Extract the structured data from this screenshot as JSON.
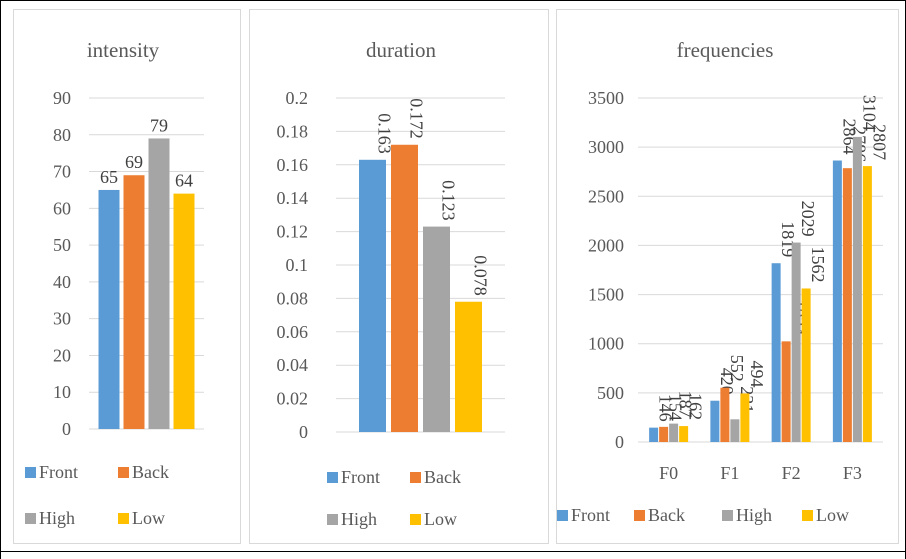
{
  "colors": {
    "Front": "#5b9bd5",
    "Back": "#ed7d31",
    "High": "#a5a5a5",
    "Low": "#ffc000"
  },
  "chart_data": [
    {
      "type": "bar",
      "title": "intensity",
      "categories": [
        ""
      ],
      "series": [
        {
          "name": "Front",
          "values": [
            65
          ]
        },
        {
          "name": "Back",
          "values": [
            69
          ]
        },
        {
          "name": "High",
          "values": [
            79
          ]
        },
        {
          "name": "Low",
          "values": [
            64
          ]
        }
      ],
      "yticks": [
        "0",
        "10",
        "20",
        "30",
        "40",
        "50",
        "60",
        "70",
        "80",
        "90"
      ],
      "ylim": [
        0,
        90
      ],
      "data_labels": [
        "65",
        "69",
        "79",
        "64"
      ],
      "data_label_rotation": "horizontal",
      "grid": true,
      "legend": "bottom"
    },
    {
      "type": "bar",
      "title": "duration",
      "categories": [
        ""
      ],
      "series": [
        {
          "name": "Front",
          "values": [
            0.163
          ]
        },
        {
          "name": "Back",
          "values": [
            0.172
          ]
        },
        {
          "name": "High",
          "values": [
            0.123
          ]
        },
        {
          "name": "Low",
          "values": [
            0.078
          ]
        }
      ],
      "yticks": [
        "0",
        "0.02",
        "0.04",
        "0.06",
        "0.08",
        "0.1",
        "0.12",
        "0.14",
        "0.16",
        "0.18",
        "0.2"
      ],
      "ylim": [
        0,
        0.2
      ],
      "data_labels": [
        "0.163",
        "0.172",
        "0.123",
        "0.078"
      ],
      "data_label_rotation": "vertical",
      "grid": true,
      "legend": "bottom"
    },
    {
      "type": "bar",
      "title": "frequencies",
      "categories": [
        "F0",
        "F1",
        "F2",
        "F3"
      ],
      "series": [
        {
          "name": "Front",
          "values": [
            146,
            420,
            1819,
            2864
          ]
        },
        {
          "name": "Back",
          "values": [
            154,
            552,
            1024,
            2786
          ]
        },
        {
          "name": "High",
          "values": [
            187,
            231,
            2029,
            3104
          ]
        },
        {
          "name": "Low",
          "values": [
            162,
            494,
            1562,
            2807
          ]
        }
      ],
      "yticks": [
        "0",
        "500",
        "1000",
        "1500",
        "2000",
        "2500",
        "3000",
        "3500"
      ],
      "ylim": [
        0,
        3500
      ],
      "data_labels": [
        [
          "146",
          "420",
          "1819",
          "2864"
        ],
        [
          "154",
          "552",
          "1024",
          "2786"
        ],
        [
          "187",
          "231",
          "2029",
          "3104"
        ],
        [
          "162",
          "494",
          "1562",
          "2807"
        ]
      ],
      "data_label_rotation": "vertical",
      "grid": true,
      "legend": "bottom"
    }
  ]
}
